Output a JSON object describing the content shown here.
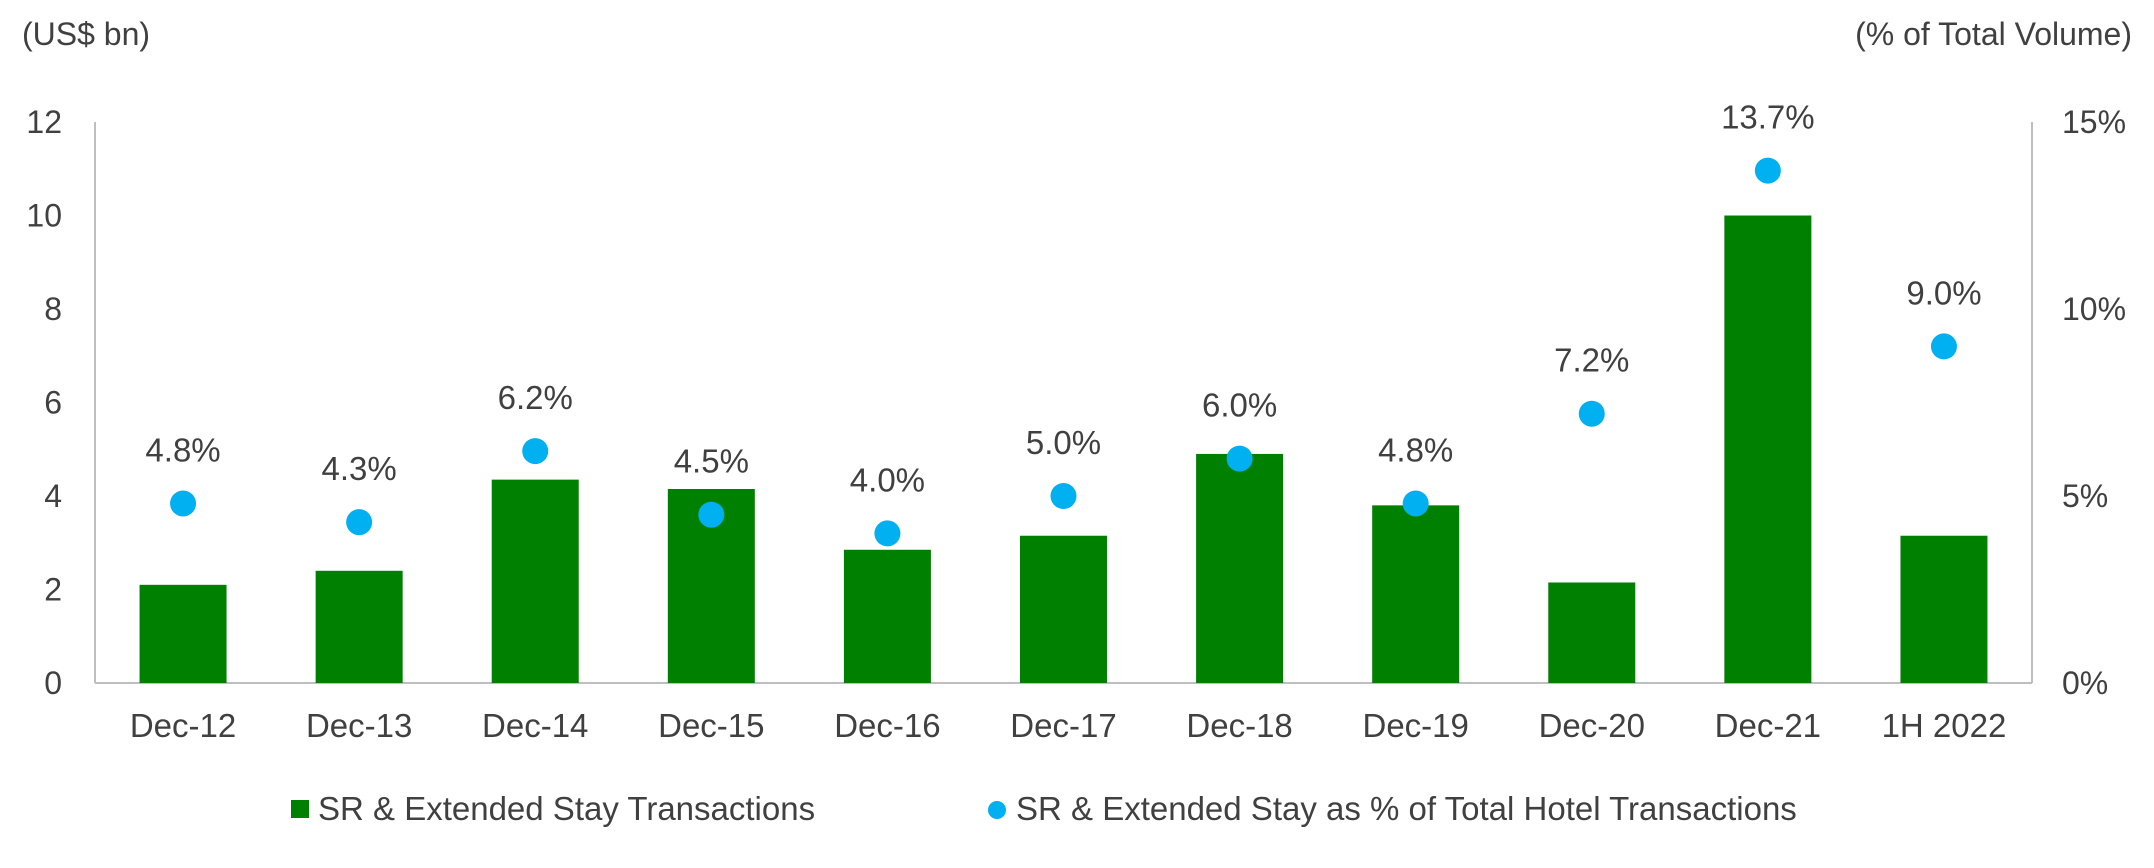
{
  "chart_data": {
    "type": "bar",
    "left_axis_unit": "(US$ bn)",
    "right_axis_unit": "(% of Total Volume)",
    "categories": [
      "Dec-12",
      "Dec-13",
      "Dec-14",
      "Dec-15",
      "Dec-16",
      "Dec-17",
      "Dec-18",
      "Dec-19",
      "Dec-20",
      "Dec-21",
      "1H 2022"
    ],
    "left_ylim": [
      0,
      12
    ],
    "left_ticks": [
      "0",
      "2",
      "4",
      "6",
      "8",
      "10",
      "12"
    ],
    "right_ylim": [
      0,
      15
    ],
    "right_ticks": [
      "0%",
      "5%",
      "10%",
      "15%"
    ],
    "grid": false,
    "legend_position": "bottom",
    "series": [
      {
        "name": "SR & Extended Stay Transactions",
        "type": "bar",
        "axis": "left",
        "color": "#008000",
        "values": [
          2.1,
          2.4,
          4.35,
          4.15,
          2.85,
          3.15,
          4.9,
          3.8,
          2.15,
          10.0,
          3.15
        ]
      },
      {
        "name": "SR & Extended Stay as % of Total Hotel Transactions",
        "type": "scatter",
        "axis": "right",
        "color": "#00B0F0",
        "values": [
          4.8,
          4.3,
          6.2,
          4.5,
          4.0,
          5.0,
          6.0,
          4.8,
          7.2,
          13.7,
          9.0
        ],
        "labels": [
          "4.8%",
          "4.3%",
          "6.2%",
          "4.5%",
          "4.0%",
          "5.0%",
          "6.0%",
          "4.8%",
          "7.2%",
          "13.7%",
          "9.0%"
        ]
      }
    ]
  }
}
